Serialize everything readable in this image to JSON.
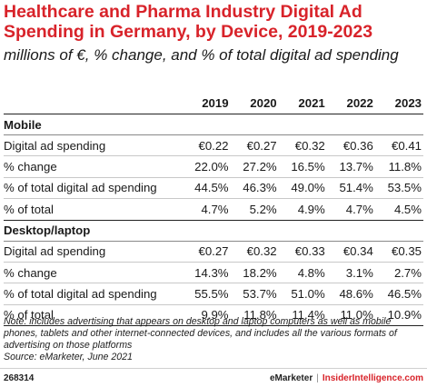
{
  "chart_data": {
    "type": "table",
    "title": "Healthcare and Pharma Industry Digital Ad Spending in Germany, by Device, 2019-2023",
    "subtitle": "millions of €, % change, and % of total digital ad spending",
    "columns": [
      "2019",
      "2020",
      "2021",
      "2022",
      "2023"
    ],
    "sections": [
      {
        "name": "Mobile",
        "rows": [
          {
            "label": "Digital ad spending",
            "values": [
              "€0.22",
              "€0.27",
              "€0.32",
              "€0.36",
              "€0.41"
            ]
          },
          {
            "label": "% change",
            "values": [
              "22.0%",
              "27.2%",
              "16.5%",
              "13.7%",
              "11.8%"
            ]
          },
          {
            "label": "% of total digital ad spending",
            "values": [
              "44.5%",
              "46.3%",
              "49.0%",
              "51.4%",
              "53.5%"
            ]
          },
          {
            "label": "% of total",
            "values": [
              "4.7%",
              "5.2%",
              "4.9%",
              "4.7%",
              "4.5%"
            ]
          }
        ]
      },
      {
        "name": "Desktop/laptop",
        "rows": [
          {
            "label": "Digital ad spending",
            "values": [
              "€0.27",
              "€0.32",
              "€0.33",
              "€0.34",
              "€0.35"
            ]
          },
          {
            "label": "% change",
            "values": [
              "14.3%",
              "18.2%",
              "4.8%",
              "3.1%",
              "2.7%"
            ]
          },
          {
            "label": "% of total digital ad spending",
            "values": [
              "55.5%",
              "53.7%",
              "51.0%",
              "48.6%",
              "46.5%"
            ]
          },
          {
            "label": "% of total",
            "values": [
              "9.9%",
              "11.8%",
              "11.4%",
              "11.0%",
              "10.9%"
            ]
          }
        ]
      }
    ],
    "note": "Note: includes advertising that appears on desktop and laptop computers as well as mobile phones, tablets and other internet-connected devices, and includes all the various formats of advertising on those platforms",
    "source": "Source: eMarketer, June 2021"
  },
  "footer": {
    "figure_id": "268314",
    "brand1": "eMarketer",
    "separator": "|",
    "brand2": "InsiderIntelligence.com"
  },
  "colors": {
    "title": "#d8232a",
    "text": "#1a1a1a"
  }
}
